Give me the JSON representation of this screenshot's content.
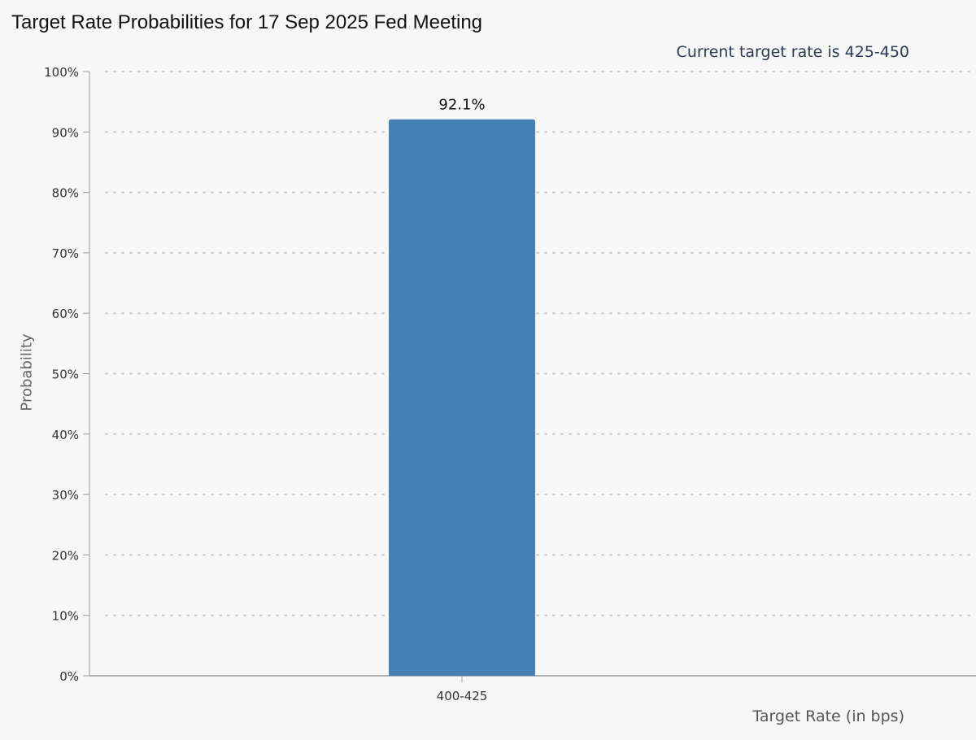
{
  "chart_data": {
    "type": "bar",
    "title": "Target Rate Probabilities for 17 Sep 2025 Fed Meeting",
    "annotation": "Current target rate is 425-450",
    "xlabel": "Target Rate (in bps)",
    "ylabel": "Probability",
    "categories": [
      "400-425"
    ],
    "values": [
      92.1
    ],
    "data_labels": [
      "92.1%"
    ],
    "ylim": [
      0,
      100
    ],
    "yticks": [
      "0%",
      "10%",
      "20%",
      "30%",
      "40%",
      "50%",
      "60%",
      "70%",
      "80%",
      "90%",
      "100%"
    ],
    "grid": true,
    "bar_color": "#4480b6"
  }
}
